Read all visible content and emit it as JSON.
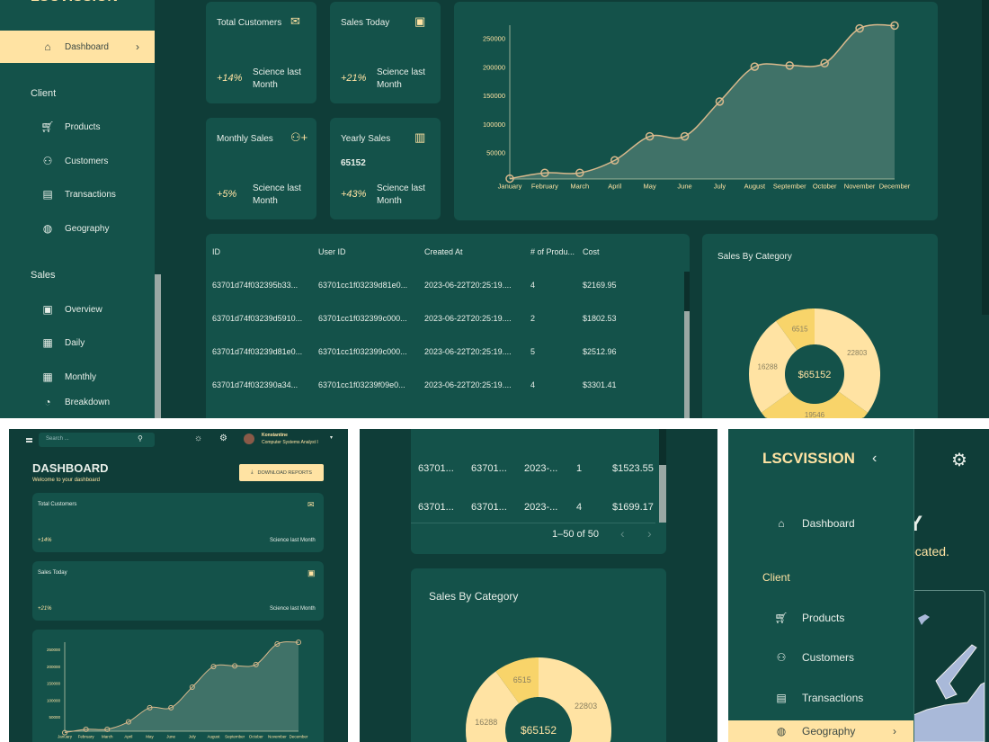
{
  "brand": "LSCVISSION",
  "sidebar": {
    "dashboard": "Dashboard",
    "sections": [
      {
        "title": "Client",
        "items": [
          "Products",
          "Customers",
          "Transactions",
          "Geography"
        ]
      },
      {
        "title": "Sales",
        "items": [
          "Overview",
          "Daily",
          "Monthly",
          "Breakdown"
        ]
      }
    ]
  },
  "topbar": {
    "search_placeholder": "Search ...",
    "user_name": "Konstantine",
    "user_role": "Computer Systems Analyst I"
  },
  "header": {
    "title": "DASHBOARD",
    "subtitle": "Welcome to your dashboard",
    "download_label": "DOWNLOAD REPORTS"
  },
  "stats": [
    {
      "title": "Total Customers",
      "icon": "email-icon",
      "value": "",
      "change": "+14%",
      "note": "Science last Month"
    },
    {
      "title": "Sales Today",
      "icon": "point-of-sale-icon",
      "value": "",
      "change": "+21%",
      "note": "Science last Month"
    },
    {
      "title": "Monthly Sales",
      "icon": "person-add-icon",
      "value": "",
      "change": "+5%",
      "note": "Science last Month"
    },
    {
      "title": "Yearly Sales",
      "icon": "traffic-icon",
      "value": "65152",
      "change": "+43%",
      "note": "Science last Month"
    }
  ],
  "table": {
    "columns": [
      "ID",
      "User ID",
      "Created At",
      "# of Produ...",
      "Cost"
    ],
    "rows": [
      [
        "63701d74f032395b33...",
        "63701cc1f03239d81e0...",
        "2023-06-22T20:25:19....",
        "4",
        "$2169.95"
      ],
      [
        "63701d74f03239d5910...",
        "63701cc1f032399c000...",
        "2023-06-22T20:25:19....",
        "2",
        "$1802.53"
      ],
      [
        "63701d74f03239d81e0...",
        "63701cc1f032399c000...",
        "2023-06-22T20:25:19....",
        "5",
        "$2512.96"
      ],
      [
        "63701d74f032390a34...",
        "63701cc1f03239f09e0...",
        "2023-06-22T20:25:19....",
        "4",
        "$3301.41"
      ]
    ],
    "narrow_rows": [
      [
        "63701...",
        "63701...",
        "2023-...",
        "1",
        "$1523.55"
      ],
      [
        "63701...",
        "63701...",
        "2023-...",
        "4",
        "$1699.17"
      ]
    ],
    "pagination": "1–50 of 50"
  },
  "geography": {
    "title_fragment": "Y",
    "subtitle_fragment": "ocated."
  },
  "colors": {
    "background": "#0f3d38",
    "panel": "#14524a",
    "accent": "#ffe3a3",
    "accent_dark": "#f8d46a",
    "line": "#d9b98c",
    "map": "#a9b9d9"
  },
  "chart_data": [
    {
      "type": "area",
      "categories": [
        "January",
        "February",
        "March",
        "April",
        "May",
        "June",
        "July",
        "August",
        "September",
        "October",
        "November",
        "December"
      ],
      "values": [
        5000,
        15000,
        15000,
        37000,
        79000,
        79000,
        140000,
        201000,
        203000,
        207000,
        268000,
        273000
      ],
      "yticks": [
        50000,
        100000,
        150000,
        200000,
        250000
      ],
      "grid": false
    },
    {
      "type": "pie",
      "title": "Sales By Category",
      "total_label": "$65152",
      "values": [
        22803,
        19546,
        16288,
        6515
      ]
    }
  ]
}
